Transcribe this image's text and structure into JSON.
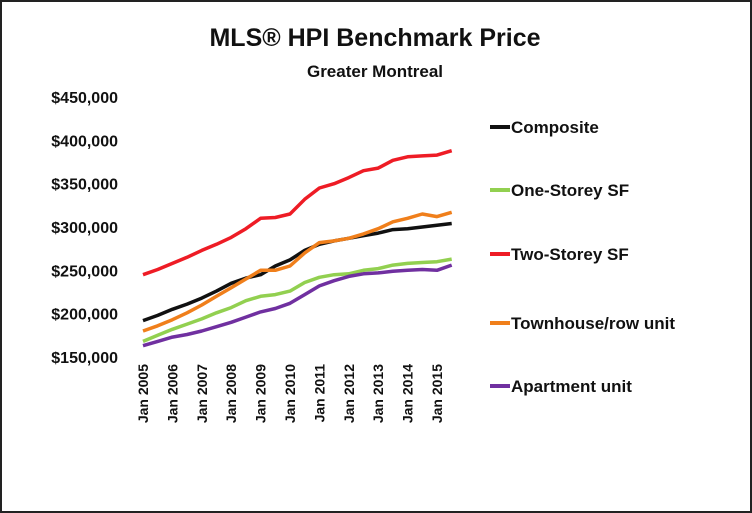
{
  "chart_data": {
    "type": "line",
    "title": "MLS® HPI Benchmark Price",
    "subtitle": "Greater Montreal",
    "categories": [
      "Jan 2005",
      null,
      "Jan 2006",
      null,
      "Jan 2007",
      null,
      "Jan 2008",
      null,
      "Jan 2009",
      null,
      "Jan 2010",
      null,
      "Jan 2011",
      null,
      "Jan 2012",
      null,
      "Jan 2013",
      null,
      "Jan 2014",
      null,
      "Jan 2015",
      null
    ],
    "series": [
      {
        "name": "Composite",
        "color": "#111111",
        "values": [
          192000,
          198000,
          205000,
          211000,
          218000,
          226000,
          235000,
          241000,
          245000,
          255000,
          262000,
          273000,
          280000,
          284000,
          287000,
          290000,
          293000,
          297000,
          298000,
          300000,
          302000,
          304000
        ]
      },
      {
        "name": "One-Storey SF",
        "color": "#92d050",
        "values": [
          168000,
          175000,
          182000,
          188000,
          194000,
          201000,
          207000,
          215000,
          220000,
          222000,
          226000,
          236000,
          242000,
          245000,
          246000,
          250000,
          252000,
          256000,
          258000,
          259000,
          260000,
          263000
        ]
      },
      {
        "name": "Two-Storey SF",
        "color": "#ee1c25",
        "values": [
          245000,
          251000,
          258000,
          265000,
          273000,
          280000,
          288000,
          298000,
          310000,
          311000,
          315000,
          332000,
          345000,
          350000,
          357000,
          365000,
          368000,
          377000,
          381000,
          382000,
          383000,
          388000
        ]
      },
      {
        "name": "Townhouse/row unit",
        "color": "#f07f1b",
        "values": [
          180000,
          186000,
          193000,
          201000,
          210000,
          220000,
          230000,
          240000,
          250000,
          250000,
          255000,
          270000,
          282000,
          284000,
          287000,
          292000,
          298000,
          306000,
          310000,
          315000,
          312000,
          317000
        ]
      },
      {
        "name": "Apartment unit",
        "color": "#7030a0",
        "values": [
          163000,
          168000,
          173000,
          176000,
          180000,
          185000,
          190000,
          196000,
          202000,
          206000,
          212000,
          222000,
          232000,
          238000,
          243000,
          246000,
          247000,
          249000,
          250000,
          251000,
          250000,
          256000
        ]
      }
    ],
    "ylim": [
      150000,
      450000
    ],
    "yticks": [
      {
        "value": 150000,
        "label": "$150,000"
      },
      {
        "value": 200000,
        "label": "$200,000"
      },
      {
        "value": 250000,
        "label": "$250,000"
      },
      {
        "value": 300000,
        "label": "$300,000"
      },
      {
        "value": 350000,
        "label": "$350,000"
      },
      {
        "value": 400000,
        "label": "$400,000"
      },
      {
        "value": 450000,
        "label": "$450,000"
      }
    ],
    "grid": false,
    "legend": "right"
  }
}
